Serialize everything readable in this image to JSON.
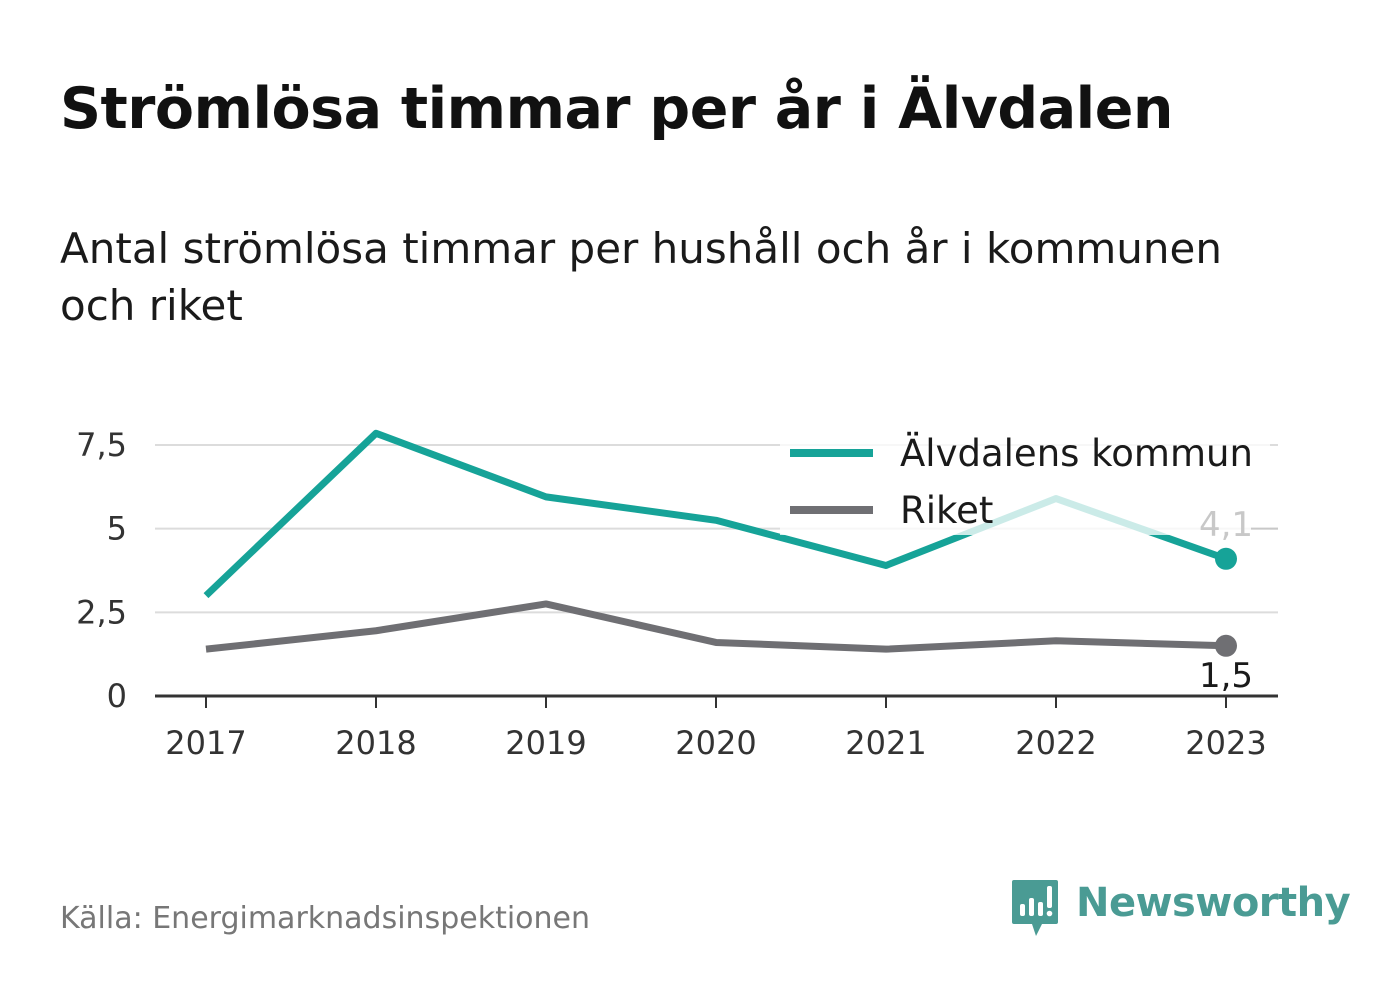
{
  "title": "Strömlösa timmar per år i Älvdalen",
  "subtitle": "Antal strömlösa timmar per hushåll och år i kommunen och riket",
  "source": "Källa: Energimarknadsinspektionen",
  "brand": {
    "name": "Newsworthy",
    "icon": "newsworthy-logo-icon",
    "color": "#4a9b94"
  },
  "chart_data": {
    "type": "line",
    "x": [
      "2017",
      "2018",
      "2019",
      "2020",
      "2021",
      "2022",
      "2023"
    ],
    "series": [
      {
        "name": "Älvdalens kommun",
        "color": "#16a398",
        "values": [
          3.0,
          7.85,
          5.95,
          5.25,
          3.9,
          5.9,
          4.1
        ],
        "end_label": "4,1"
      },
      {
        "name": "Riket",
        "color": "#6f6f73",
        "values": [
          1.4,
          1.95,
          2.75,
          1.6,
          1.4,
          1.65,
          1.5
        ],
        "end_label": "1,5"
      }
    ],
    "y_ticks": [
      {
        "value": 0,
        "label": "0"
      },
      {
        "value": 2.5,
        "label": "2,5"
      },
      {
        "value": 5,
        "label": "5"
      },
      {
        "value": 7.5,
        "label": "7,5"
      }
    ],
    "ylim": [
      0,
      7.5
    ],
    "grid": true,
    "legend_position": "top-right",
    "xlabel": "",
    "ylabel": ""
  }
}
